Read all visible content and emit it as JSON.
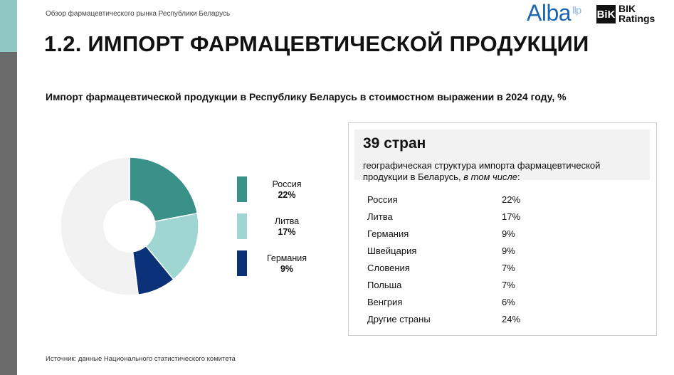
{
  "header": {
    "note": "Обзор фармацевтического рынка Республики Беларусь",
    "logo_alba": "Alba",
    "logo_alba_suffix": "llp",
    "logo_bik_mark": "BiK",
    "logo_bik_line1": "BIK",
    "logo_bik_line2": "Ratings"
  },
  "page_title": "1.2. ИМПОРТ ФАРМАЦЕВТИЧЕСКОЙ ПРОДУКЦИИ",
  "chart_data": {
    "type": "pie",
    "title": "Импорт фармацевтической продукции в Республику Беларусь в стоимостном выражении в 2024 году, %",
    "series": [
      {
        "name": "Россия",
        "value": 22,
        "label": "22%",
        "color": "#3a9188"
      },
      {
        "name": "Литва",
        "value": 17,
        "label": "17%",
        "color": "#9fd6d2"
      },
      {
        "name": "Германия",
        "value": 9,
        "label": "9%",
        "color": "#0b3278"
      },
      {
        "name": "",
        "value": 52,
        "label": "",
        "color": "#f2f2f2"
      }
    ],
    "legend_position": "right"
  },
  "info": {
    "big": "39 стран",
    "desc_main": "географическая структура импорта фармацевтической продукции в Беларусь, ",
    "desc_italic": "в том числе",
    "desc_end": ":",
    "rows": [
      {
        "country": "Россия",
        "value": "22%"
      },
      {
        "country": "Литва",
        "value": "17%"
      },
      {
        "country": "Германия",
        "value": "9%"
      },
      {
        "country": "Швейцария",
        "value": "9%"
      },
      {
        "country": "Словения",
        "value": "7%"
      },
      {
        "country": "Польша",
        "value": "7%"
      },
      {
        "country": "Венгрия",
        "value": "6%"
      },
      {
        "country": "Другие страны",
        "value": "24%"
      }
    ]
  },
  "source": "Источник: данные Национального статистического комитета"
}
